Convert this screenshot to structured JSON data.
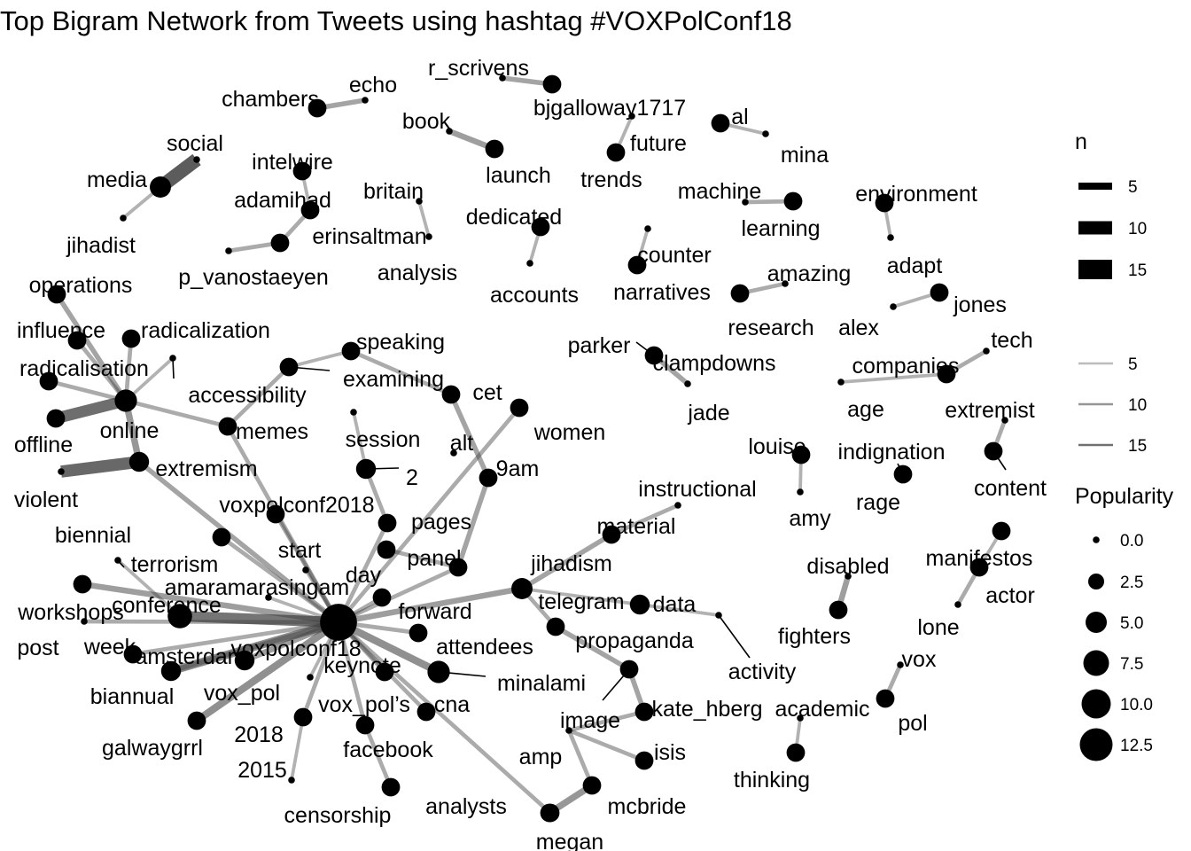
{
  "title": "Top Bigram Network from Tweets using hashtag #VOXPolConf18",
  "chart_data": {
    "type": "network",
    "nodes": [
      {
        "id": "voxpolconf18",
        "popularity": 13
      },
      {
        "id": "conference",
        "popularity": 4
      },
      {
        "id": "online",
        "popularity": 3
      },
      {
        "id": "minalami",
        "popularity": 3
      },
      {
        "id": "media",
        "popularity": 2.5
      },
      {
        "id": "telegram",
        "popularity": 2.5
      },
      {
        "id": "extremism",
        "popularity": 2
      },
      {
        "id": "2",
        "popularity": 2
      },
      {
        "id": "data",
        "popularity": 2
      },
      {
        "id": "vox_pol",
        "popularity": 2
      },
      {
        "id": "amsterdam",
        "popularity": 2
      },
      {
        "id": "bjgalloway1717",
        "popularity": 1.5
      },
      {
        "id": "launch",
        "popularity": 1.5
      },
      {
        "id": "echo",
        "popularity": 0
      },
      {
        "id": "chambers",
        "popularity": 1.5
      },
      {
        "id": "learning",
        "popularity": 1.5
      },
      {
        "id": "memes",
        "popularity": 1.5
      },
      {
        "id": "biannual",
        "popularity": 1.5
      },
      {
        "id": "megan",
        "popularity": 1.5
      },
      {
        "id": "mcbride",
        "popularity": 1.5
      },
      {
        "id": "week",
        "popularity": 1.5
      },
      {
        "id": "offline",
        "popularity": 1.5
      },
      {
        "id": "trends",
        "popularity": 1.5
      },
      {
        "id": "al",
        "popularity": 1.5
      },
      {
        "id": "research",
        "popularity": 1.5
      },
      {
        "id": "jones",
        "popularity": 1.5
      },
      {
        "id": "companies",
        "popularity": 1.5
      },
      {
        "id": "content",
        "popularity": 1.5
      },
      {
        "id": "fighters",
        "popularity": 1.5
      },
      {
        "id": "clampdowns",
        "popularity": 1.5
      },
      {
        "id": "rage",
        "popularity": 1.5
      },
      {
        "id": "pol",
        "popularity": 1.5
      },
      {
        "id": "thinking",
        "popularity": 1.5
      },
      {
        "id": "material",
        "popularity": 1.5
      },
      {
        "id": "panel",
        "popularity": 1.5
      },
      {
        "id": "examining",
        "popularity": 1.5
      },
      {
        "id": "social",
        "popularity": 0
      },
      {
        "id": "jihadist",
        "popularity": 0
      },
      {
        "id": "intelwire",
        "popularity": 1.5
      },
      {
        "id": "adamihad",
        "popularity": 1.5
      },
      {
        "id": "erinsaltman",
        "popularity": 1.5
      },
      {
        "id": "p_vanostaeyen",
        "popularity": 0
      },
      {
        "id": "britain",
        "popularity": 0
      },
      {
        "id": "analysis",
        "popularity": 0
      },
      {
        "id": "book",
        "popularity": 0
      },
      {
        "id": "r_scrivens",
        "popularity": 0
      },
      {
        "id": "future",
        "popularity": 0
      },
      {
        "id": "mina",
        "popularity": 0
      },
      {
        "id": "machine",
        "popularity": 0
      },
      {
        "id": "environment",
        "popularity": 1.5
      },
      {
        "id": "adapt",
        "popularity": 0
      },
      {
        "id": "dedicated",
        "popularity": 1.5
      },
      {
        "id": "accounts",
        "popularity": 0
      },
      {
        "id": "counter",
        "popularity": 0
      },
      {
        "id": "narratives",
        "popularity": 1.5
      },
      {
        "id": "amazing",
        "popularity": 0
      },
      {
        "id": "alex",
        "popularity": 0
      },
      {
        "id": "operations",
        "popularity": 1.5
      },
      {
        "id": "influence",
        "popularity": 1.5
      },
      {
        "id": "radicalization",
        "popularity": 1.5
      },
      {
        "id": "radicalisation",
        "popularity": 1.5
      },
      {
        "id": "accessibility",
        "popularity": 0
      },
      {
        "id": "speaking",
        "popularity": 1.5
      },
      {
        "id": "cet",
        "popularity": 1.5
      },
      {
        "id": "women",
        "popularity": 1.5
      },
      {
        "id": "alt",
        "popularity": 0
      },
      {
        "id": "9am",
        "popularity": 1.5
      },
      {
        "id": "session",
        "popularity": 0
      },
      {
        "id": "violent",
        "popularity": 0
      },
      {
        "id": "voxpolconf2018",
        "popularity": 1.5
      },
      {
        "id": "pages",
        "popularity": 1.5
      },
      {
        "id": "start",
        "popularity": 0
      },
      {
        "id": "day",
        "popularity": 1.5
      },
      {
        "id": "biennial",
        "popularity": 0
      },
      {
        "id": "terrorism",
        "popularity": 1.5
      },
      {
        "id": "amaramarasingam",
        "popularity": 0
      },
      {
        "id": "workshops",
        "popularity": 1.5
      },
      {
        "id": "post",
        "popularity": 0
      },
      {
        "id": "forward",
        "popularity": 1.5
      },
      {
        "id": "attendees",
        "popularity": 1.5
      },
      {
        "id": "keynote",
        "popularity": 1.5
      },
      {
        "id": "jihadism",
        "popularity": 0
      },
      {
        "id": "instructional",
        "popularity": 0
      },
      {
        "id": "propaganda",
        "popularity": 1.5
      },
      {
        "id": "activity",
        "popularity": 0
      },
      {
        "id": "image",
        "popularity": 1.5
      },
      {
        "id": "kate_hberg",
        "popularity": 1.5
      },
      {
        "id": "isis",
        "popularity": 1.5
      },
      {
        "id": "amp",
        "popularity": 0
      },
      {
        "id": "analysts",
        "popularity": 1.5
      },
      {
        "id": "cna",
        "popularity": 1.5
      },
      {
        "id": "vox_pol’s",
        "popularity": 0
      },
      {
        "id": "facebook",
        "popularity": 1.5
      },
      {
        "id": "censorship",
        "popularity": 1.5
      },
      {
        "id": "2018",
        "popularity": 1.5
      },
      {
        "id": "2015",
        "popularity": 0
      },
      {
        "id": "galwaygrrl",
        "popularity": 1.5
      },
      {
        "id": "parker",
        "popularity": 0
      },
      {
        "id": "jade",
        "popularity": 0
      },
      {
        "id": "age",
        "popularity": 0
      },
      {
        "id": "tech",
        "popularity": 0
      },
      {
        "id": "extremist",
        "popularity": 0
      },
      {
        "id": "louise",
        "popularity": 1.5
      },
      {
        "id": "amy",
        "popularity": 0
      },
      {
        "id": "indignation",
        "popularity": 0
      },
      {
        "id": "disabled",
        "popularity": 0
      },
      {
        "id": "manifestos",
        "popularity": 1.5
      },
      {
        "id": "actor",
        "popularity": 1.5
      },
      {
        "id": "lone",
        "popularity": 0
      },
      {
        "id": "vox",
        "popularity": 0
      },
      {
        "id": "academic",
        "popularity": 0
      }
    ],
    "edges": [
      {
        "from": "social",
        "to": "media",
        "n": 16
      },
      {
        "from": "echo",
        "to": "chambers",
        "n": 5
      },
      {
        "from": "r_scrivens",
        "to": "bjgalloway1717",
        "n": 5
      },
      {
        "from": "book",
        "to": "launch",
        "n": 6
      },
      {
        "from": "future",
        "to": "trends",
        "n": 3
      },
      {
        "from": "al",
        "to": "mina",
        "n": 3
      },
      {
        "from": "media",
        "to": "jihadist",
        "n": 3
      },
      {
        "from": "intelwire",
        "to": "adamihad",
        "n": 3
      },
      {
        "from": "adamihad",
        "to": "erinsaltman",
        "n": 4
      },
      {
        "from": "erinsaltman",
        "to": "p_vanostaeyen",
        "n": 4
      },
      {
        "from": "britain",
        "to": "analysis",
        "n": 3
      },
      {
        "from": "dedicated",
        "to": "accounts",
        "n": 3
      },
      {
        "from": "counter",
        "to": "narratives",
        "n": 3
      },
      {
        "from": "machine",
        "to": "learning",
        "n": 4
      },
      {
        "from": "environment",
        "to": "adapt",
        "n": 3
      },
      {
        "from": "amazing",
        "to": "research",
        "n": 4
      },
      {
        "from": "alex",
        "to": "jones",
        "n": 3
      },
      {
        "from": "parker",
        "to": "clampdowns",
        "n": 2
      },
      {
        "from": "clampdowns",
        "to": "jade",
        "n": 5
      },
      {
        "from": "companies",
        "to": "age",
        "n": 3
      },
      {
        "from": "tech",
        "to": "companies",
        "n": 4
      },
      {
        "from": "extremist",
        "to": "content",
        "n": 4
      },
      {
        "from": "louise",
        "to": "amy",
        "n": 3
      },
      {
        "from": "indignation",
        "to": "rage",
        "n": 2
      },
      {
        "from": "rage",
        "to": "rage",
        "n": 3
      },
      {
        "from": "disabled",
        "to": "fighters",
        "n": 6
      },
      {
        "from": "manifestos",
        "to": "actor",
        "n": 3
      },
      {
        "from": "actor",
        "to": "lone",
        "n": 4
      },
      {
        "from": "vox",
        "to": "pol",
        "n": 4
      },
      {
        "from": "academic",
        "to": "thinking",
        "n": 3
      },
      {
        "from": "operations",
        "to": "online",
        "n": 5
      },
      {
        "from": "influence",
        "to": "online",
        "n": 4
      },
      {
        "from": "radicalization",
        "to": "online",
        "n": 4
      },
      {
        "from": "radicalisation",
        "to": "online",
        "n": 4
      },
      {
        "from": "accessibility",
        "to": "online",
        "n": 3
      },
      {
        "from": "offline",
        "to": "online",
        "n": 13
      },
      {
        "from": "online",
        "to": "extremism",
        "n": 7
      },
      {
        "from": "online",
        "to": "memes",
        "n": 4
      },
      {
        "from": "violent",
        "to": "extremism",
        "n": 14
      },
      {
        "from": "extremism",
        "to": "voxpolconf18",
        "n": 5
      },
      {
        "from": "memes",
        "to": "examining",
        "n": 4
      },
      {
        "from": "examining",
        "to": "speaking",
        "n": 3
      },
      {
        "from": "speaking",
        "to": "cet",
        "n": 4
      },
      {
        "from": "cet",
        "to": "9am",
        "n": 5
      },
      {
        "from": "9am",
        "to": "panel",
        "n": 5
      },
      {
        "from": "women",
        "to": "voxpolconf18",
        "n": 4
      },
      {
        "from": "session",
        "to": "2",
        "n": 3
      },
      {
        "from": "2",
        "to": "pages",
        "n": 4
      },
      {
        "from": "memes",
        "to": "voxpolconf18",
        "n": 4
      },
      {
        "from": "voxpolconf2018",
        "to": "voxpolconf18",
        "n": 4
      },
      {
        "from": "pages",
        "to": "voxpolconf18",
        "n": 4
      },
      {
        "from": "start",
        "to": "voxpolconf18",
        "n": 3
      },
      {
        "from": "day",
        "to": "panel",
        "n": 4
      },
      {
        "from": "terrorism",
        "to": "voxpolconf18",
        "n": 4
      },
      {
        "from": "conference",
        "to": "voxpolconf18",
        "n": 12
      },
      {
        "from": "workshops",
        "to": "voxpolconf18",
        "n": 6
      },
      {
        "from": "post",
        "to": "voxpolconf18",
        "n": 4
      },
      {
        "from": "week",
        "to": "voxpolconf18",
        "n": 4
      },
      {
        "from": "amsterdam",
        "to": "voxpolconf18",
        "n": 9
      },
      {
        "from": "biannual",
        "to": "voxpolconf18",
        "n": 5
      },
      {
        "from": "vox_pol",
        "to": "voxpolconf18",
        "n": 6
      },
      {
        "from": "galwaygrrl",
        "to": "voxpolconf18",
        "n": 8
      },
      {
        "from": "forward",
        "to": "voxpolconf18",
        "n": 4
      },
      {
        "from": "attendees",
        "to": "voxpolconf18",
        "n": 4
      },
      {
        "from": "keynote",
        "to": "voxpolconf18",
        "n": 4
      },
      {
        "from": "minalami",
        "to": "voxpolconf18",
        "n": 8
      },
      {
        "from": "cna",
        "to": "voxpolconf18",
        "n": 4
      },
      {
        "from": "facebook",
        "to": "voxpolconf18",
        "n": 4
      },
      {
        "from": "2018",
        "to": "voxpolconf18",
        "n": 4
      },
      {
        "from": "telegram",
        "to": "voxpolconf18",
        "n": 6
      },
      {
        "from": "panel",
        "to": "voxpolconf18",
        "n": 4
      },
      {
        "from": "telegram",
        "to": "material",
        "n": 5
      },
      {
        "from": "instructional",
        "to": "material",
        "n": 4
      },
      {
        "from": "telegram",
        "to": "data",
        "n": 3
      },
      {
        "from": "data",
        "to": "activity",
        "n": 3
      },
      {
        "from": "telegram",
        "to": "propaganda",
        "n": 4
      },
      {
        "from": "propaganda",
        "to": "image",
        "n": 5
      },
      {
        "from": "image",
        "to": "kate_hberg",
        "n": 5
      },
      {
        "from": "kate_hberg",
        "to": "amp",
        "n": 4
      },
      {
        "from": "amp",
        "to": "isis",
        "n": 4
      },
      {
        "from": "amp",
        "to": "mcbride",
        "n": 4
      },
      {
        "from": "mcbride",
        "to": "megan",
        "n": 7
      },
      {
        "from": "megan",
        "to": "analysts",
        "n": 5
      },
      {
        "from": "analysts",
        "to": "voxpolconf18",
        "n": 4
      },
      {
        "from": "facebook",
        "to": "censorship",
        "n": 4
      },
      {
        "from": "2018",
        "to": "2015",
        "n": 3
      },
      {
        "from": "amaramarasingam",
        "to": "voxpolconf18",
        "n": 3
      },
      {
        "from": "vox_pol’s",
        "to": "voxpolconf18",
        "n": 3
      },
      {
        "from": "biennial",
        "to": "conference",
        "n": 3
      }
    ],
    "legend_edge": {
      "title": "n",
      "breaks": [
        "5",
        "10",
        "15"
      ]
    },
    "legend_popularity": {
      "title": "Popularity",
      "breaks": [
        "0.0",
        "2.5",
        "5.0",
        "7.5",
        "10.0",
        "12.5"
      ]
    }
  }
}
